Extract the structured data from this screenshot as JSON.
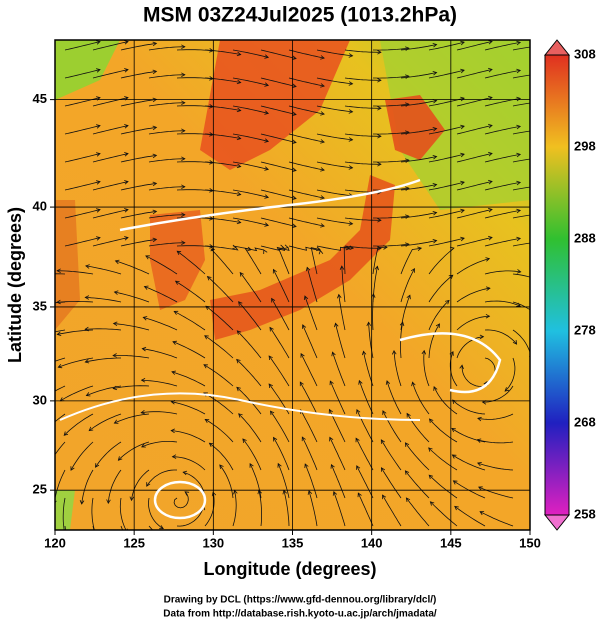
{
  "chart_data": {
    "type": "map",
    "title": "MSM 03Z24Jul2025 (1013.2hPa)",
    "x_label": "Longitude (degrees)",
    "y_label": "Latitude  (degrees)",
    "projection": "mercator",
    "xlim": [
      120,
      150
    ],
    "xticks": [
      120,
      125,
      130,
      135,
      140,
      145,
      150
    ],
    "ylim": [
      22.7,
      47.6
    ],
    "yticks": [
      25,
      30,
      35,
      40,
      45
    ],
    "grid": true,
    "colorbar": {
      "range": [
        258,
        308
      ],
      "ticks": [
        258,
        268,
        278,
        288,
        298,
        308
      ]
    },
    "credits": [
      "Drawing by DCL (https://www.gfd-dennou.org/library/dcl/)",
      "Data from http://database.rish.kyoto-u.ac.jp/arch/jmadata/"
    ]
  }
}
